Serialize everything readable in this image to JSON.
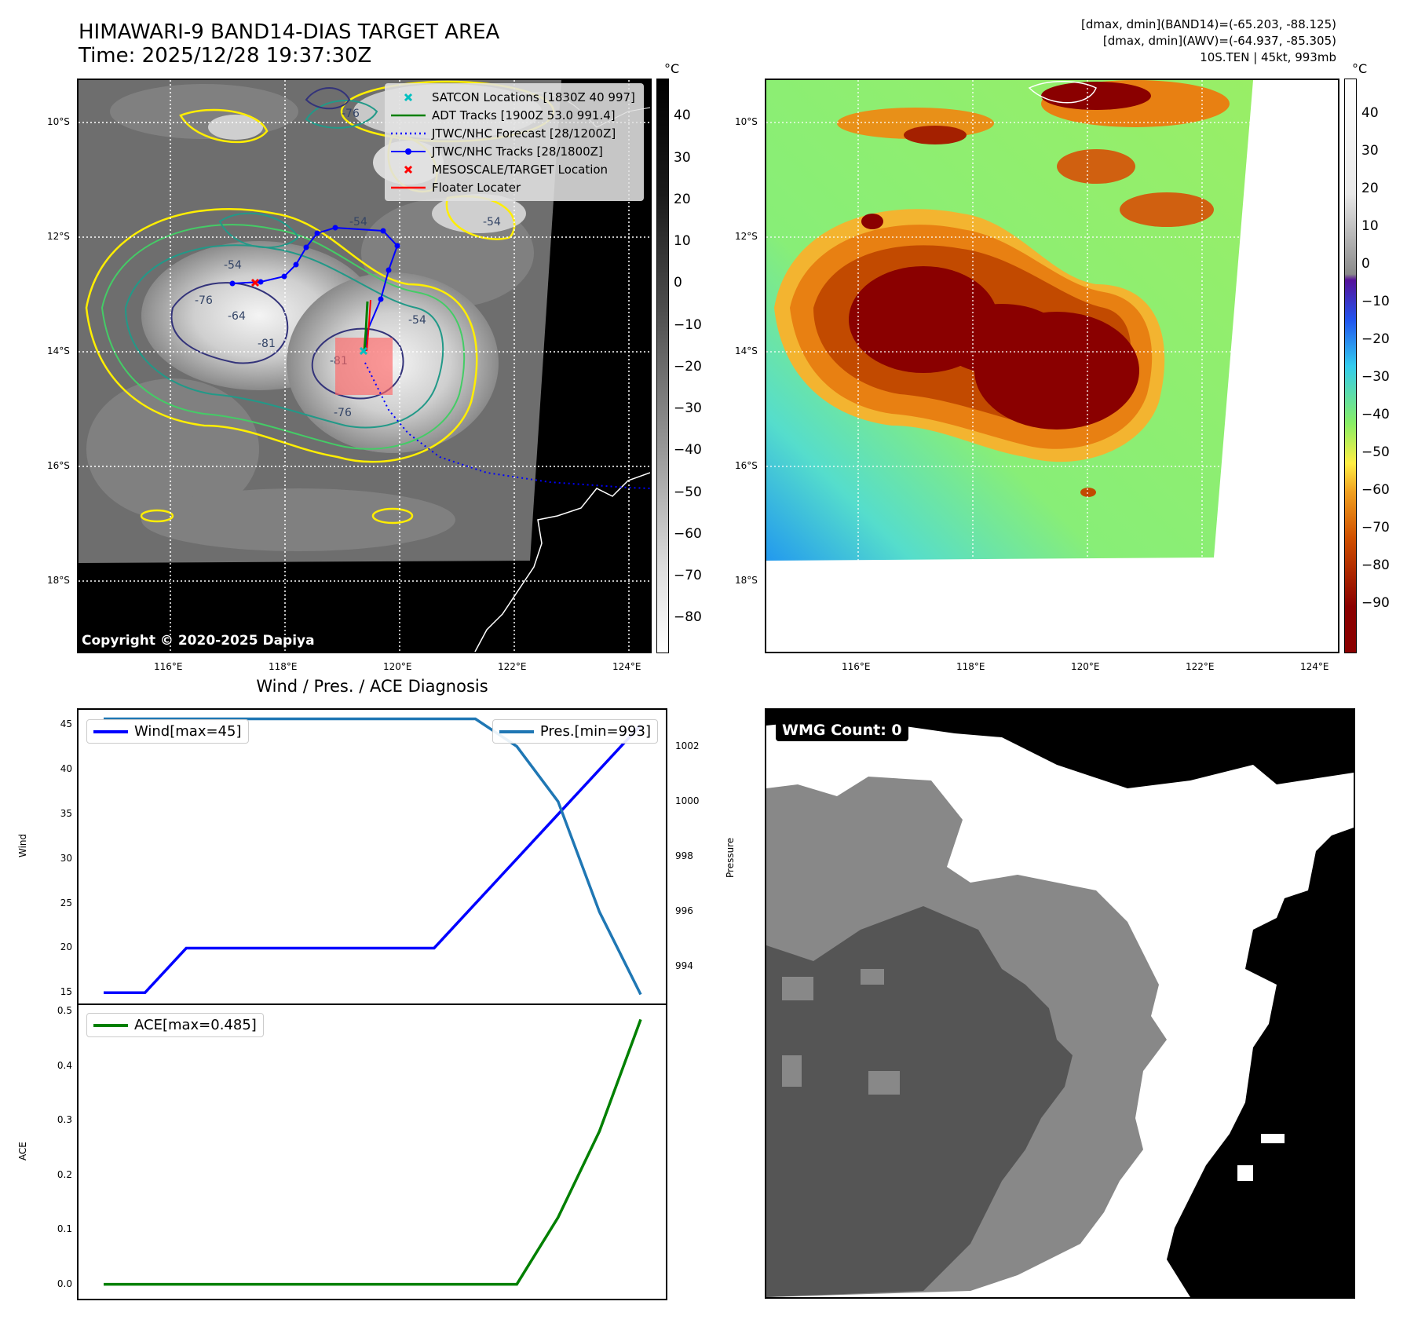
{
  "header": {
    "title": "HIMAWARI-9 BAND14-DIAS TARGET AREA",
    "time": "Time: 2025/12/28 19:37:30Z",
    "info_line1": "[dmax, dmin](BAND14)=(-65.203, -88.125)",
    "info_line2": "[dmax, dmin](AWV)=(-64.937, -85.305)",
    "info_line3": "10S.TEN | 45kt, 993mb"
  },
  "map": {
    "lat_labels": [
      "10°S",
      "12°S",
      "14°S",
      "16°S",
      "18°S"
    ],
    "lon_labels": [
      "116°E",
      "118°E",
      "120°E",
      "122°E",
      "124°E"
    ],
    "copyright": "Copyright © 2020-2025 Dapiya",
    "contour_labels": [
      "-54",
      "-64",
      "-76",
      "-81",
      "-76",
      "-81",
      "-54",
      "-76",
      "-54",
      "-54"
    ]
  },
  "colorbar_gray": {
    "unit": "°C",
    "ticks": [
      "40",
      "30",
      "20",
      "10",
      "0",
      "−10",
      "−20",
      "−30",
      "−40",
      "−50",
      "−60",
      "−70",
      "−80"
    ]
  },
  "colorbar_color": {
    "unit": "°C",
    "ticks": [
      "40",
      "30",
      "20",
      "10",
      "0",
      "−10",
      "−20",
      "−30",
      "−40",
      "−50",
      "−60",
      "−70",
      "−80",
      "−90"
    ]
  },
  "map_legend": {
    "items": [
      {
        "label": "SATCON Locations [1830Z 40 997]",
        "color": "#00c0c0",
        "symbol": "x"
      },
      {
        "label": "ADT Tracks [1900Z 53.0 991.4]",
        "color": "#008000",
        "symbol": "line"
      },
      {
        "label": "JTWC/NHC Forecast [28/1200Z]",
        "color": "#0000ff",
        "symbol": "dotted"
      },
      {
        "label": "JTWC/NHC Tracks [28/1800Z]",
        "color": "#0000ff",
        "symbol": "line-dot"
      },
      {
        "label": "MESOSCALE/TARGET Location",
        "color": "#ff0000",
        "symbol": "x"
      },
      {
        "label": "Floater Locater",
        "color": "#ff0000",
        "symbol": "line"
      }
    ]
  },
  "wmg": {
    "label": "WMG Count: 0"
  },
  "chart_data": [
    {
      "type": "line",
      "title": "Wind / Pres. / ACE Diagnosis",
      "x": [
        0,
        1,
        2,
        3,
        4,
        5,
        6,
        7,
        8,
        9,
        10,
        11,
        12,
        13
      ],
      "series": [
        {
          "name": "Wind[max=45]",
          "axis": "left",
          "color": "#0000ff",
          "values": [
            15,
            15,
            20,
            20,
            20,
            20,
            20,
            20,
            20,
            25,
            30,
            35,
            40,
            45
          ]
        },
        {
          "name": "Pres.[min=993]",
          "axis": "right",
          "color": "#1f77b4",
          "values": [
            1003,
            1003,
            1003,
            1003,
            1003,
            1003,
            1003,
            1003,
            1003,
            1003,
            1002,
            1000,
            996,
            993
          ]
        }
      ],
      "ylabel": "Wind",
      "ylabel_right": "Pressure",
      "ylim": [
        14.5,
        46
      ],
      "ylim_right": [
        992.9,
        1003.1
      ],
      "yticks": [
        "45",
        "40",
        "35",
        "30",
        "25",
        "20",
        "15"
      ],
      "yticks_right": [
        "1002",
        "1000",
        "998",
        "996",
        "994"
      ]
    },
    {
      "type": "line",
      "x": [
        0,
        1,
        2,
        3,
        4,
        5,
        6,
        7,
        8,
        9,
        10,
        11,
        12,
        13
      ],
      "series": [
        {
          "name": "ACE[max=0.485]",
          "color": "#008000",
          "values": [
            0,
            0,
            0,
            0,
            0,
            0,
            0,
            0,
            0,
            0,
            0,
            0.1225,
            0.28,
            0.485
          ]
        }
      ],
      "ylabel": "ACE",
      "ylim": [
        -0.015,
        0.5
      ],
      "yticks": [
        "0.5",
        "0.4",
        "0.3",
        "0.2",
        "0.1",
        "0.0"
      ]
    }
  ]
}
